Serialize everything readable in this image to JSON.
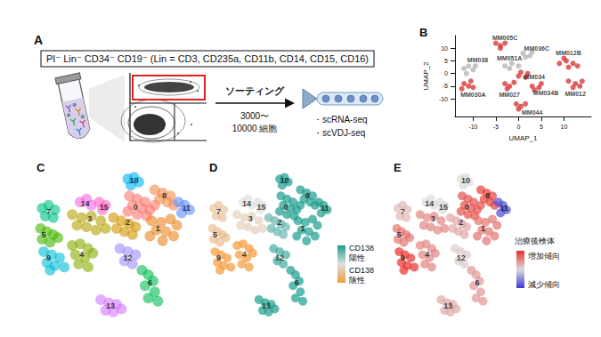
{
  "panel_a": {
    "label": "A",
    "marker_text": "PI⁻ Lin⁻ CD34⁻ CD19⁻ (Lin = CD3, CD235a, CD11b, CD14, CD15, CD16)",
    "arrow_text": "ソーティング",
    "cell_count": [
      "3000〜",
      "10000 細胞"
    ],
    "outputs": [
      "・scRNA-seq",
      "・scVDJ-seq"
    ]
  },
  "umap_clusters": [
    {
      "name": "0",
      "label_at": [
        62,
        79
      ],
      "values": [
        [
          58,
          86
        ],
        [
          63,
          84
        ],
        [
          68,
          82
        ],
        [
          60,
          80
        ],
        [
          66,
          78
        ],
        [
          71,
          77
        ],
        [
          57,
          76
        ],
        [
          63,
          74
        ],
        [
          69,
          73
        ],
        [
          74,
          80
        ]
      ]
    },
    {
      "name": "1",
      "label_at": [
        76,
        65
      ],
      "values": [
        [
          72,
          70
        ],
        [
          78,
          69
        ],
        [
          84,
          71
        ],
        [
          88,
          67
        ],
        [
          75,
          64
        ],
        [
          81,
          63
        ],
        [
          86,
          60
        ],
        [
          79,
          57
        ],
        [
          71,
          60
        ]
      ]
    },
    {
      "name": "2",
      "label_at": [
        57,
        69
      ],
      "values": [
        [
          48,
          72
        ],
        [
          53,
          70
        ],
        [
          58,
          68
        ],
        [
          62,
          66
        ],
        [
          50,
          65
        ],
        [
          55,
          63
        ],
        [
          60,
          61
        ]
      ]
    },
    {
      "name": "3",
      "label_at": [
        33,
        71
      ],
      "values": [
        [
          22,
          74
        ],
        [
          28,
          72
        ],
        [
          34,
          73
        ],
        [
          40,
          70
        ],
        [
          25,
          67
        ],
        [
          31,
          66
        ],
        [
          37,
          64
        ],
        [
          43,
          65
        ]
      ]
    },
    {
      "name": "4",
      "label_at": [
        28,
        48
      ],
      "values": [
        [
          22,
          54
        ],
        [
          27,
          55
        ],
        [
          32,
          52
        ],
        [
          24,
          48
        ],
        [
          30,
          46
        ],
        [
          35,
          49
        ],
        [
          26,
          42
        ],
        [
          32,
          40
        ]
      ]
    },
    {
      "name": "5",
      "label_at": [
        4,
        61
      ],
      "values": [
        [
          2,
          65
        ],
        [
          6,
          63
        ],
        [
          10,
          61
        ],
        [
          3,
          58
        ],
        [
          8,
          56
        ],
        [
          13,
          59
        ]
      ]
    },
    {
      "name": "6",
      "label_at": [
        71,
        30
      ],
      "values": [
        [
          66,
          38
        ],
        [
          70,
          35
        ],
        [
          73,
          31
        ],
        [
          68,
          28
        ],
        [
          74,
          24
        ],
        [
          70,
          20
        ],
        [
          76,
          18
        ]
      ]
    },
    {
      "name": "7",
      "label_at": [
        7,
        76
      ],
      "values": [
        [
          3,
          78
        ],
        [
          7,
          80
        ],
        [
          11,
          77
        ],
        [
          5,
          73
        ],
        [
          10,
          72
        ]
      ]
    },
    {
      "name": "8",
      "label_at": [
        80,
        86
      ],
      "values": [
        [
          74,
          90
        ],
        [
          79,
          88
        ],
        [
          84,
          86
        ],
        [
          77,
          84
        ],
        [
          82,
          82
        ],
        [
          86,
          80
        ]
      ]
    },
    {
      "name": "9",
      "label_at": [
        7,
        46
      ],
      "values": [
        [
          4,
          50
        ],
        [
          9,
          48
        ],
        [
          14,
          46
        ],
        [
          6,
          43
        ],
        [
          11,
          41
        ],
        [
          17,
          40
        ],
        [
          8,
          38
        ]
      ]
    },
    {
      "name": "10",
      "label_at": [
        61,
        96
      ],
      "values": [
        [
          57,
          97
        ],
        [
          61,
          98
        ],
        [
          64,
          95
        ],
        [
          59,
          93
        ]
      ]
    },
    {
      "name": "11",
      "label_at": [
        94,
        78
      ],
      "values": [
        [
          89,
          82
        ],
        [
          93,
          80
        ],
        [
          96,
          77
        ],
        [
          91,
          75
        ]
      ]
    },
    {
      "name": "12",
      "label_at": [
        57,
        46
      ],
      "values": [
        [
          52,
          52
        ],
        [
          57,
          50
        ],
        [
          62,
          48
        ],
        [
          55,
          44
        ],
        [
          60,
          42
        ]
      ]
    },
    {
      "name": "13",
      "label_at": [
        46,
        15
      ],
      "values": [
        [
          40,
          19
        ],
        [
          45,
          17
        ],
        [
          50,
          16
        ],
        [
          43,
          12
        ],
        [
          48,
          11
        ],
        [
          53,
          13
        ]
      ]
    },
    {
      "name": "14",
      "label_at": [
        30,
        81
      ],
      "values": [
        [
          27,
          82
        ],
        [
          31,
          84
        ],
        [
          34,
          80
        ]
      ]
    },
    {
      "name": "15",
      "label_at": [
        42,
        79
      ],
      "values": [
        [
          39,
          82
        ],
        [
          43,
          80
        ],
        [
          41,
          77
        ]
      ]
    }
  ],
  "chart_data": [
    {
      "type": "scatter",
      "title": "B",
      "x_label": "UMAP_1",
      "y_label": "UMAP_2",
      "xlim": [
        -14,
        16
      ],
      "ylim": [
        -17,
        15
      ],
      "xticks": [
        -10,
        -5,
        0,
        5,
        10
      ],
      "yticks": [
        -10,
        -5,
        0,
        5,
        10
      ],
      "grid": false,
      "series": [
        {
          "name": "MM005C",
          "color": "#d93a3a",
          "label_at": [
            -3,
            14
          ],
          "values": [
            [
              -5,
              12
            ],
            [
              -4,
              11
            ],
            [
              -3,
              12
            ],
            [
              -4,
              10
            ]
          ]
        },
        {
          "name": "MM036C",
          "color": "#b5b5b5",
          "label_at": [
            4,
            10
          ],
          "values": [
            [
              1,
              8
            ],
            [
              2.5,
              7
            ],
            [
              3,
              8.5
            ],
            [
              1.5,
              6.5
            ]
          ]
        },
        {
          "name": "MM038",
          "color": "#b5b5b5",
          "label_at": [
            -9,
            5.5
          ],
          "values": [
            [
              -12,
              2
            ],
            [
              -11,
              3
            ],
            [
              -10,
              1.5
            ],
            [
              -11.5,
              0
            ],
            [
              -9.5,
              3
            ]
          ]
        },
        {
          "name": "MM051A",
          "color": "#b5b5b5",
          "label_at": [
            -2,
            6
          ],
          "values": [
            [
              -3,
              3
            ],
            [
              -1.5,
              4
            ],
            [
              -2,
              2
            ],
            [
              0,
              3
            ]
          ]
        },
        {
          "name": "MM012B",
          "color": "#d93a3a",
          "label_at": [
            11,
            8
          ],
          "values": [
            [
              9,
              4
            ],
            [
              10.5,
              5
            ],
            [
              12,
              4
            ],
            [
              11,
              2.5
            ],
            [
              13,
              3
            ],
            [
              10,
              6
            ]
          ]
        },
        {
          "name": "MM034",
          "color": "#d93a3a",
          "label_at": [
            3.5,
            -1.2
          ],
          "values": [
            [
              0,
              -1
            ],
            [
              1.5,
              -1.5
            ],
            [
              2,
              0
            ],
            [
              0.5,
              0.5
            ]
          ]
        },
        {
          "name": "MM034B",
          "color": "#d93a3a",
          "label_at": [
            6,
            -7.5
          ],
          "values": [
            [
              3,
              -5
            ],
            [
              4.5,
              -5.5
            ],
            [
              5,
              -4
            ],
            [
              3.5,
              -6.5
            ]
          ]
        },
        {
          "name": "MM030A",
          "color": "#d93a3a",
          "label_at": [
            -10,
            -8.5
          ],
          "values": [
            [
              -12,
              -4
            ],
            [
              -11,
              -5
            ],
            [
              -10.5,
              -3
            ],
            [
              -12.5,
              -6
            ],
            [
              -10,
              -5.5
            ]
          ]
        },
        {
          "name": "MM027",
          "color": "#d93a3a",
          "label_at": [
            -2,
            -8.5
          ],
          "values": [
            [
              -3,
              -4
            ],
            [
              -2,
              -5
            ],
            [
              -1,
              -3.5
            ],
            [
              -2.5,
              -6
            ]
          ]
        },
        {
          "name": "MM012",
          "color": "#d93a3a",
          "label_at": [
            12.5,
            -8
          ],
          "values": [
            [
              11,
              -3
            ],
            [
              12.5,
              -4
            ],
            [
              14,
              -3
            ],
            [
              12,
              -5.5
            ],
            [
              13.5,
              -5
            ]
          ]
        },
        {
          "name": "MM044",
          "color": "#d93a3a",
          "label_at": [
            3,
            -15.5
          ],
          "values": [
            [
              -0.5,
              -12
            ],
            [
              0.5,
              -13
            ],
            [
              1.5,
              -12
            ],
            [
              0,
              -14
            ]
          ]
        }
      ]
    },
    {
      "type": "scatter",
      "title": "C",
      "xlim": [
        0,
        100
      ],
      "ylim": [
        0,
        100
      ],
      "tick_labels": false,
      "grid": false,
      "colors": [
        "#F8766D",
        "#E7851E",
        "#D09400",
        "#B2A100",
        "#89AC00",
        "#45B500",
        "#00BC51",
        "#00C087",
        "#F08A4B",
        "#00BCD6",
        "#00B3F2",
        "#5B8CFF",
        "#9C8DFF",
        "#D277FF",
        "#F166E8",
        "#FF61C7"
      ]
    },
    {
      "type": "scatter",
      "title": "D",
      "xlim": [
        0,
        100
      ],
      "ylim": [
        0,
        100
      ],
      "tick_labels": false,
      "grid": false,
      "color_values": [
        1,
        1,
        0.6,
        -0.2,
        -1,
        -0.5,
        1,
        -0.4,
        1,
        -1,
        1,
        1,
        0.8,
        1,
        0,
        0
      ],
      "color_range": [
        -1,
        1
      ],
      "colorbar_colors": [
        "#1b9e8f",
        "#e0e0e0",
        "#f39a3b"
      ],
      "colorbar_labels": [
        "CD138 陽性",
        "CD138 陰性"
      ]
    },
    {
      "type": "scatter",
      "title": "E",
      "xlim": [
        0,
        100
      ],
      "ylim": [
        0,
        100
      ],
      "tick_labels": false,
      "grid": false,
      "color_values": [
        0.8,
        0.6,
        0.3,
        0.5,
        0.5,
        0.6,
        0.4,
        0.2,
        0.9,
        1,
        0,
        -0.9,
        0.1,
        0.3,
        0,
        0
      ],
      "color_range": [
        -1,
        1
      ],
      "colorbar_colors": [
        "#e8302a",
        "#dcdcdc",
        "#3b3bd6"
      ],
      "colorbar_title": "治療後検体",
      "colorbar_labels": [
        "増加傾向",
        "減少傾向"
      ]
    }
  ]
}
